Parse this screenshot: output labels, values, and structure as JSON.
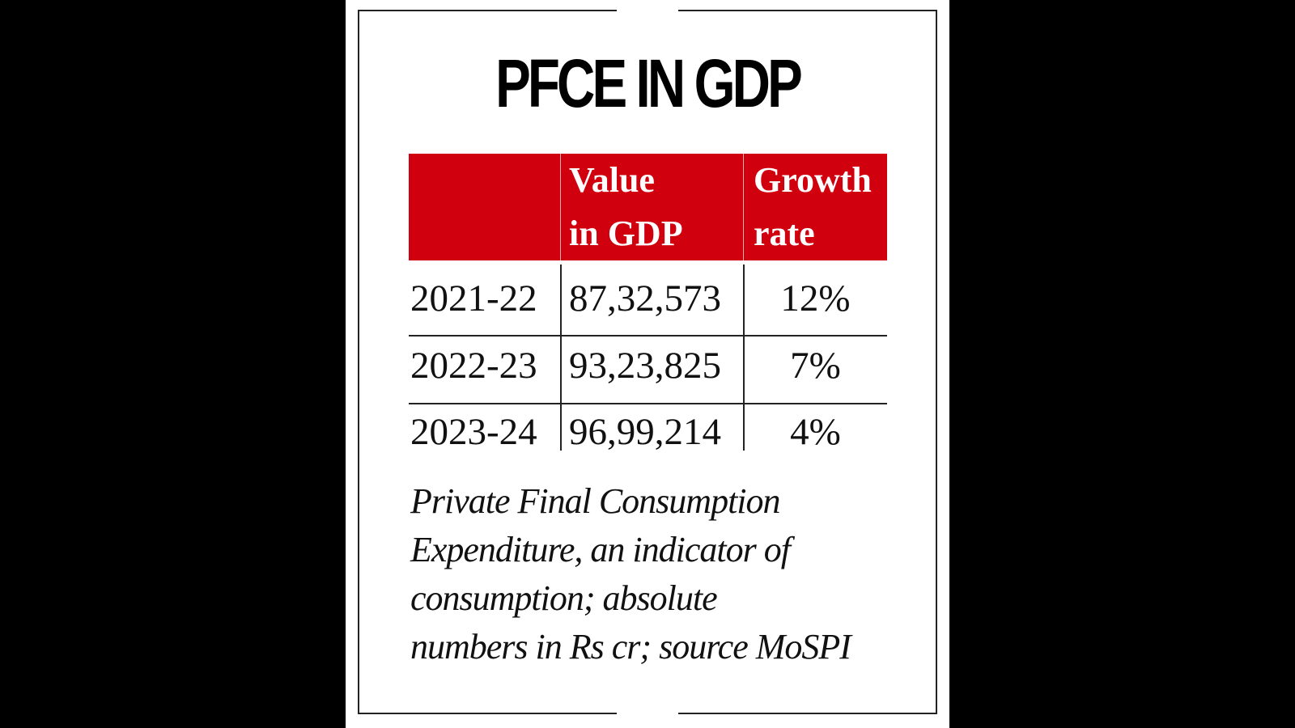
{
  "chart_data": {
    "type": "table",
    "title": "PFCE IN GDP",
    "columns": [
      "",
      "Value in GDP",
      "Growth rate"
    ],
    "header_lines": [
      [
        "Value",
        "in GDP"
      ],
      [
        "Growth",
        "rate"
      ]
    ],
    "rows": [
      {
        "year": "2021-22",
        "value": "87,32,573",
        "growth": "12%"
      },
      {
        "year": "2022-23",
        "value": "93,23,825",
        "growth": "7%"
      },
      {
        "year": "2023-24",
        "value": "96,99,214",
        "growth": "4%"
      }
    ],
    "caption": "Private Final Consumption Expenditure, an indicator of consumption; absolute numbers in Rs cr; source MoSPI",
    "caption_lines": [
      "Private Final Consumption",
      "Expenditure, an indicator of",
      "consumption; absolute",
      "numbers in Rs cr; source MoSPI"
    ],
    "colors": {
      "header": "#d0000f",
      "header_text": "#ffffff",
      "text": "#111111"
    }
  }
}
